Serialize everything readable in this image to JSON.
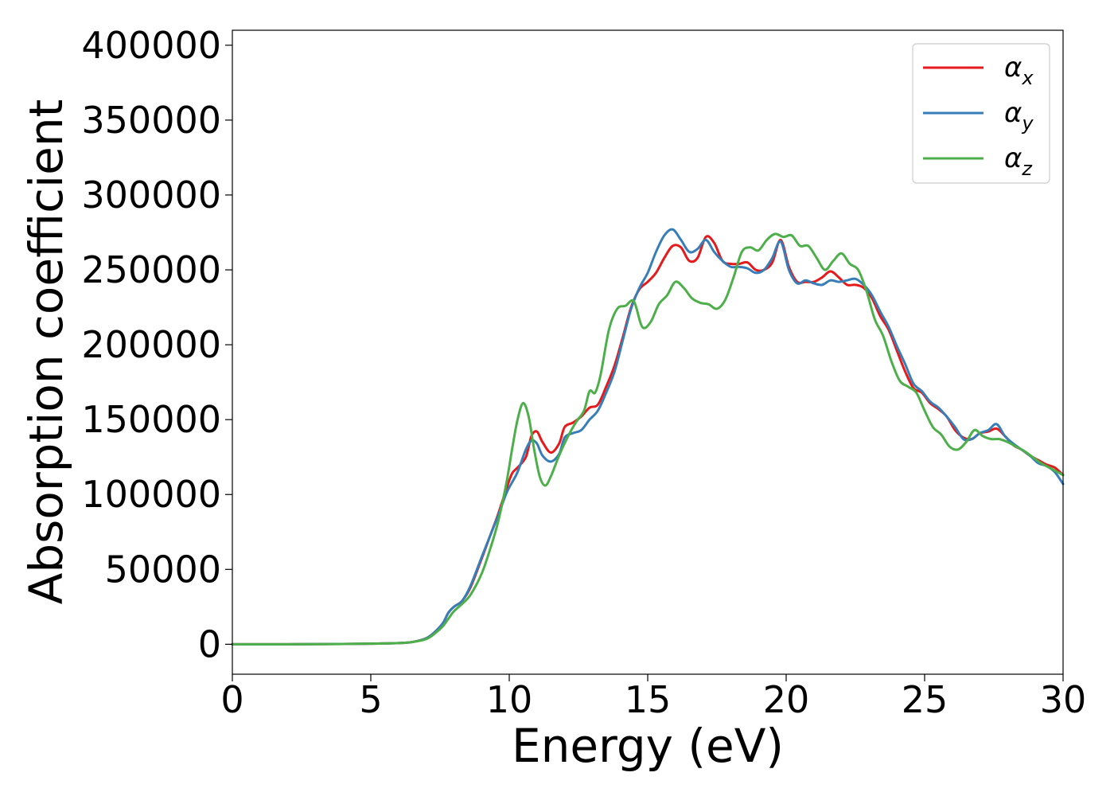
{
  "chart_data": {
    "type": "line",
    "title": "",
    "xlabel": "Energy (eV)",
    "ylabel": "Absorption coefficient",
    "xlim": [
      0,
      30
    ],
    "ylim": [
      -20000,
      410000
    ],
    "xticks": [
      0,
      5,
      10,
      15,
      20,
      25,
      30
    ],
    "yticks": [
      0,
      50000,
      100000,
      150000,
      200000,
      250000,
      300000,
      350000,
      400000
    ],
    "grid": false,
    "legend_position": "top-right",
    "series": [
      {
        "name": "α_x",
        "label_base": "α",
        "label_sub": "x",
        "color": "#e41a1c",
        "x": [
          0,
          2,
          4,
          5,
          6,
          6.5,
          7,
          7.3,
          7.6,
          7.8,
          8,
          8.3,
          8.6,
          9,
          9.3,
          9.6,
          9.9,
          10.1,
          10.3,
          10.6,
          10.8,
          11,
          11.2,
          11.5,
          11.8,
          12,
          12.3,
          12.6,
          12.9,
          13.2,
          13.5,
          13.8,
          14.1,
          14.4,
          14.7,
          15,
          15.3,
          15.6,
          15.9,
          16.2,
          16.5,
          16.8,
          17.1,
          17.4,
          17.7,
          18,
          18.3,
          18.6,
          18.9,
          19.2,
          19.5,
          19.8,
          20.1,
          20.4,
          20.7,
          21,
          21.3,
          21.6,
          21.9,
          22.2,
          22.5,
          22.8,
          23.1,
          23.4,
          23.7,
          24,
          24.3,
          24.6,
          24.9,
          25.2,
          25.5,
          25.8,
          26.1,
          26.4,
          26.7,
          27,
          27.3,
          27.6,
          27.9,
          28.2,
          28.5,
          28.8,
          29.1,
          29.4,
          29.7,
          30
        ],
        "values": [
          0,
          0,
          200,
          400,
          800,
          1500,
          4000,
          8000,
          14000,
          21000,
          25000,
          29000,
          38000,
          57000,
          72000,
          87000,
          104000,
          114000,
          118000,
          125000,
          139000,
          142000,
          135000,
          128000,
          134000,
          145000,
          148000,
          152000,
          158000,
          160000,
          172000,
          186000,
          205000,
          225000,
          237000,
          242000,
          248000,
          258000,
          266000,
          265000,
          256000,
          258000,
          272000,
          268000,
          256000,
          254000,
          254000,
          255000,
          250000,
          250000,
          255000,
          270000,
          252000,
          242000,
          242000,
          242000,
          245000,
          249000,
          245000,
          240000,
          240000,
          238000,
          231000,
          219000,
          210000,
          196000,
          182000,
          171000,
          168000,
          161000,
          157000,
          152000,
          143000,
          138000,
          137000,
          141000,
          142000,
          144000,
          139000,
          133000,
          130000,
          126000,
          123000,
          120000,
          118000,
          113000
        ]
      },
      {
        "name": "α_y",
        "label_base": "α",
        "label_sub": "y",
        "color": "#377eb8",
        "x": [
          0,
          2,
          4,
          5,
          6,
          6.5,
          7,
          7.3,
          7.6,
          7.8,
          8,
          8.3,
          8.6,
          9,
          9.3,
          9.6,
          9.9,
          10.1,
          10.3,
          10.6,
          10.8,
          11,
          11.2,
          11.5,
          11.8,
          12,
          12.3,
          12.6,
          12.9,
          13.2,
          13.5,
          13.8,
          14.1,
          14.4,
          14.7,
          15,
          15.3,
          15.6,
          15.9,
          16.2,
          16.5,
          16.8,
          17.1,
          17.4,
          17.7,
          18,
          18.3,
          18.6,
          18.9,
          19.2,
          19.5,
          19.8,
          20.1,
          20.4,
          20.7,
          21,
          21.3,
          21.6,
          21.9,
          22.2,
          22.5,
          22.8,
          23.1,
          23.4,
          23.7,
          24,
          24.3,
          24.6,
          24.9,
          25.2,
          25.5,
          25.8,
          26.1,
          26.4,
          26.7,
          27,
          27.3,
          27.6,
          27.9,
          28.2,
          28.5,
          28.8,
          29.1,
          29.4,
          29.7,
          30
        ],
        "values": [
          0,
          0,
          200,
          400,
          800,
          1500,
          4000,
          8000,
          14000,
          21000,
          25000,
          29000,
          39000,
          58000,
          72000,
          86000,
          101000,
          108000,
          115000,
          130000,
          136000,
          134000,
          126000,
          122000,
          127000,
          138000,
          141000,
          143000,
          150000,
          156000,
          168000,
          182000,
          203000,
          224000,
          238000,
          248000,
          262000,
          273000,
          277000,
          270000,
          262000,
          264000,
          270000,
          262000,
          256000,
          252000,
          252000,
          251000,
          248000,
          250000,
          258000,
          269000,
          250000,
          241000,
          243000,
          241000,
          240000,
          243000,
          242000,
          243000,
          244000,
          240000,
          233000,
          222000,
          212000,
          199000,
          187000,
          174000,
          169000,
          162000,
          158000,
          152000,
          145000,
          137000,
          137000,
          141000,
          143000,
          147000,
          139000,
          134000,
          130000,
          126000,
          121000,
          119000,
          115000,
          107000
        ]
      },
      {
        "name": "α_z",
        "label_base": "α",
        "label_sub": "z",
        "color": "#4daf4a",
        "x": [
          0,
          2,
          4,
          5,
          6,
          6.5,
          7,
          7.3,
          7.6,
          7.8,
          8,
          8.3,
          8.6,
          9,
          9.3,
          9.6,
          9.9,
          10.1,
          10.3,
          10.5,
          10.7,
          10.9,
          11.1,
          11.3,
          11.5,
          11.8,
          12.1,
          12.4,
          12.7,
          12.9,
          13.1,
          13.3,
          13.6,
          13.9,
          14.2,
          14.5,
          14.8,
          15.1,
          15.4,
          15.7,
          16,
          16.3,
          16.6,
          16.9,
          17.2,
          17.5,
          17.8,
          18.1,
          18.4,
          18.7,
          19,
          19.3,
          19.6,
          19.9,
          20.2,
          20.5,
          20.8,
          21.1,
          21.4,
          21.7,
          22,
          22.3,
          22.6,
          22.9,
          23.2,
          23.5,
          23.8,
          24.1,
          24.4,
          24.7,
          25,
          25.3,
          25.6,
          25.9,
          26.2,
          26.5,
          26.8,
          27.1,
          27.4,
          27.7,
          28,
          28.3,
          28.6,
          28.9,
          29.2,
          29.5,
          29.8,
          30
        ],
        "values": [
          0,
          0,
          200,
          400,
          800,
          1500,
          3500,
          7000,
          12000,
          17000,
          22000,
          27000,
          33000,
          47000,
          63000,
          82000,
          108000,
          130000,
          150000,
          161000,
          152000,
          130000,
          112000,
          106000,
          112000,
          126000,
          138000,
          148000,
          156000,
          169000,
          168000,
          180000,
          210000,
          224000,
          226000,
          229000,
          212000,
          215000,
          227000,
          233000,
          242000,
          238000,
          231000,
          228000,
          227000,
          224000,
          230000,
          245000,
          262000,
          265000,
          263000,
          270000,
          274000,
          272000,
          273000,
          266000,
          266000,
          258000,
          250000,
          256000,
          261000,
          254000,
          250000,
          236000,
          217000,
          206000,
          189000,
          176000,
          172000,
          168000,
          156000,
          145000,
          140000,
          132000,
          130000,
          135000,
          143000,
          139000,
          137000,
          137000,
          135000,
          132000,
          129000,
          125000,
          121000,
          118000,
          115000,
          113000
        ]
      }
    ]
  }
}
